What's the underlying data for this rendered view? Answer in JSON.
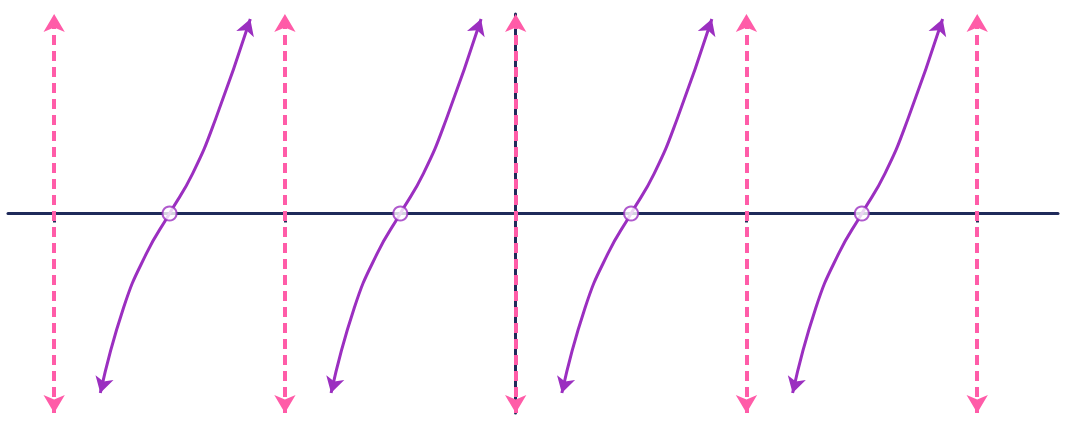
{
  "chart_data": {
    "type": "line",
    "xlim": [
      -2.2,
      2.35
    ],
    "xticks": [
      -2,
      -1,
      1,
      2
    ],
    "ylim": [
      -4,
      4
    ],
    "yticks": [],
    "tick_labels": false,
    "grid": false,
    "color": "#9b2fc0",
    "marker": "arrow",
    "line_style": "solid",
    "series": [
      {
        "x": [
          -1.8,
          -1.7,
          -1.6,
          -1.5,
          -1.4,
          -1.3,
          -1.15
        ],
        "values": [
          -3.6,
          -1.9,
          -0.8,
          0,
          0.8,
          1.9,
          3.9
        ]
      },
      {
        "x": [
          -0.8,
          -0.7,
          -0.6,
          -0.5,
          -0.4,
          -0.3,
          -0.15
        ],
        "values": [
          -3.6,
          -1.9,
          -0.8,
          0,
          0.8,
          1.9,
          3.9
        ]
      },
      {
        "x": [
          0.2,
          0.3,
          0.4,
          0.5,
          0.6,
          0.7,
          0.85
        ],
        "values": [
          -3.6,
          -1.9,
          -0.8,
          0,
          0.8,
          1.9,
          3.9
        ]
      },
      {
        "x": [
          1.2,
          1.3,
          1.4,
          1.5,
          1.6,
          1.7,
          1.85
        ],
        "values": [
          -3.6,
          -1.9,
          -0.8,
          0,
          0.8,
          1.9,
          3.9
        ]
      }
    ],
    "zeros": [
      -1.5,
      -0.5,
      0.5,
      1.5
    ],
    "asymptotes": [
      -2,
      -1,
      0,
      1,
      2
    ]
  }
}
